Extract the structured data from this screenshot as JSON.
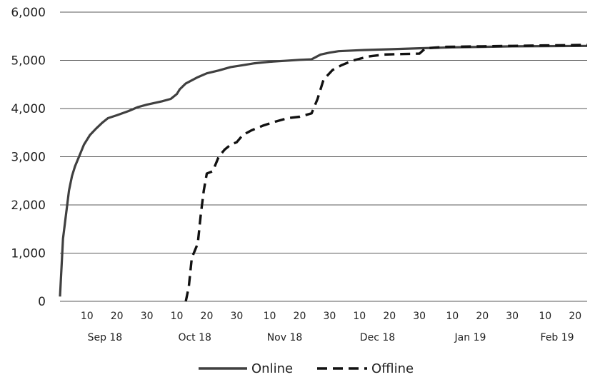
{
  "chart_data": {
    "type": "line",
    "title": "",
    "xlabel": "",
    "ylabel": "",
    "ylim": [
      0,
      6000
    ],
    "yticks": [
      0,
      1000,
      2000,
      3000,
      4000,
      5000,
      6000
    ],
    "ytick_labels": [
      "0",
      "1,000",
      "2,000",
      "3,000",
      "4,000",
      "5,000",
      "6,000"
    ],
    "xlim": [
      "2018-09-01",
      "2019-02-24"
    ],
    "xticks": [
      {
        "date": "2018-09-10",
        "label": "10"
      },
      {
        "date": "2018-09-20",
        "label": "20"
      },
      {
        "date": "2018-09-30",
        "label": "30"
      },
      {
        "date": "2018-10-10",
        "label": "10"
      },
      {
        "date": "2018-10-20",
        "label": "20"
      },
      {
        "date": "2018-10-30",
        "label": "30"
      },
      {
        "date": "2018-11-10",
        "label": "10"
      },
      {
        "date": "2018-11-20",
        "label": "20"
      },
      {
        "date": "2018-11-30",
        "label": "30"
      },
      {
        "date": "2018-12-10",
        "label": "10"
      },
      {
        "date": "2018-12-20",
        "label": "20"
      },
      {
        "date": "2018-12-30",
        "label": "30"
      },
      {
        "date": "2019-01-10",
        "label": "10"
      },
      {
        "date": "2019-01-20",
        "label": "20"
      },
      {
        "date": "2019-01-30",
        "label": "30"
      },
      {
        "date": "2019-02-10",
        "label": "10"
      },
      {
        "date": "2019-02-20",
        "label": "20"
      }
    ],
    "months": [
      {
        "label": "Sep 18",
        "date": "2018-09-16"
      },
      {
        "label": "Oct 18",
        "date": "2018-10-16"
      },
      {
        "label": "Nov 18",
        "date": "2018-11-15"
      },
      {
        "label": "Dec 18",
        "date": "2018-12-16"
      },
      {
        "label": "Jan 19",
        "date": "2019-01-16"
      },
      {
        "label": "Feb 19",
        "date": "2019-02-14"
      }
    ],
    "grid": true,
    "legend_position": "bottom",
    "series": [
      {
        "name": "Online",
        "style": "solid",
        "color": "#404040",
        "points": [
          [
            "2018-09-01",
            100
          ],
          [
            "2018-09-02",
            1300
          ],
          [
            "2018-09-03",
            1800
          ],
          [
            "2018-09-04",
            2300
          ],
          [
            "2018-09-05",
            2600
          ],
          [
            "2018-09-06",
            2800
          ],
          [
            "2018-09-07",
            2950
          ],
          [
            "2018-09-08",
            3100
          ],
          [
            "2018-09-09",
            3250
          ],
          [
            "2018-09-10",
            3350
          ],
          [
            "2018-09-11",
            3450
          ],
          [
            "2018-09-13",
            3580
          ],
          [
            "2018-09-15",
            3700
          ],
          [
            "2018-09-17",
            3800
          ],
          [
            "2018-09-20",
            3860
          ],
          [
            "2018-09-24",
            3950
          ],
          [
            "2018-09-27",
            4030
          ],
          [
            "2018-09-30",
            4080
          ],
          [
            "2018-10-05",
            4150
          ],
          [
            "2018-10-08",
            4200
          ],
          [
            "2018-10-10",
            4300
          ],
          [
            "2018-10-11",
            4400
          ],
          [
            "2018-10-13",
            4520
          ],
          [
            "2018-10-17",
            4650
          ],
          [
            "2018-10-20",
            4730
          ],
          [
            "2018-10-24",
            4790
          ],
          [
            "2018-10-28",
            4860
          ],
          [
            "2018-11-01",
            4900
          ],
          [
            "2018-11-05",
            4940
          ],
          [
            "2018-11-10",
            4970
          ],
          [
            "2018-11-15",
            4990
          ],
          [
            "2018-11-20",
            5010
          ],
          [
            "2018-11-24",
            5020
          ],
          [
            "2018-11-27",
            5120
          ],
          [
            "2018-11-30",
            5160
          ],
          [
            "2018-12-03",
            5190
          ],
          [
            "2018-12-10",
            5210
          ],
          [
            "2018-12-20",
            5230
          ],
          [
            "2018-12-30",
            5250
          ],
          [
            "2019-01-10",
            5270
          ],
          [
            "2019-01-20",
            5280
          ],
          [
            "2019-01-30",
            5290
          ],
          [
            "2019-02-10",
            5295
          ],
          [
            "2019-02-24",
            5300
          ]
        ]
      },
      {
        "name": "Offline",
        "style": "dashed",
        "color": "#111111",
        "points": [
          [
            "2018-10-13",
            0
          ],
          [
            "2018-10-14",
            300
          ],
          [
            "2018-10-15",
            900
          ],
          [
            "2018-10-17",
            1200
          ],
          [
            "2018-10-18",
            1800
          ],
          [
            "2018-10-19",
            2300
          ],
          [
            "2018-10-20",
            2650
          ],
          [
            "2018-10-22",
            2700
          ],
          [
            "2018-10-24",
            3000
          ],
          [
            "2018-10-26",
            3150
          ],
          [
            "2018-10-28",
            3250
          ],
          [
            "2018-10-30",
            3300
          ],
          [
            "2018-11-01",
            3450
          ],
          [
            "2018-11-04",
            3550
          ],
          [
            "2018-11-08",
            3650
          ],
          [
            "2018-11-12",
            3730
          ],
          [
            "2018-11-16",
            3800
          ],
          [
            "2018-11-20",
            3830
          ],
          [
            "2018-11-24",
            3900
          ],
          [
            "2018-11-26",
            4200
          ],
          [
            "2018-11-28",
            4600
          ],
          [
            "2018-12-01",
            4800
          ],
          [
            "2018-12-04",
            4900
          ],
          [
            "2018-12-08",
            5000
          ],
          [
            "2018-12-13",
            5080
          ],
          [
            "2018-12-18",
            5120
          ],
          [
            "2018-12-24",
            5130
          ],
          [
            "2018-12-30",
            5140
          ],
          [
            "2019-01-01",
            5250
          ],
          [
            "2019-01-08",
            5280
          ],
          [
            "2019-01-20",
            5290
          ],
          [
            "2019-01-30",
            5300
          ],
          [
            "2019-02-10",
            5310
          ],
          [
            "2019-02-24",
            5320
          ]
        ]
      }
    ]
  }
}
